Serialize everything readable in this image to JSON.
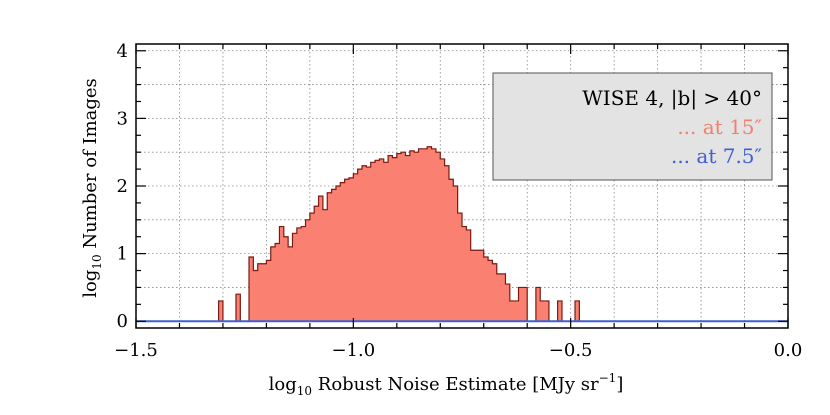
{
  "chart_data": {
    "type": "histogram",
    "xlabel": {
      "prefix": "log",
      "sub": "10",
      "main": " Robust Noise Estimate [MJy sr",
      "sup": "−1",
      "suffix": "]"
    },
    "ylabel": {
      "prefix": "log",
      "sub": "10",
      "main": " Number of Images"
    },
    "xlim": [
      -1.5,
      0.0
    ],
    "ylim": [
      -0.1,
      4.1
    ],
    "x_ticks": [
      -1.5,
      -1.0,
      -0.5,
      0.0
    ],
    "x_tick_labels": [
      "−1.5",
      "−1.0",
      "−0.5",
      "0.0"
    ],
    "y_ticks": [
      0,
      1,
      2,
      3,
      4
    ],
    "y_tick_labels": [
      "0",
      "1",
      "2",
      "3",
      "4"
    ],
    "grid": true,
    "legend": {
      "position": "top-right",
      "title": "WISE 4, |b| > 40°",
      "entries": [
        {
          "label": "... at 15″",
          "color": "#f08070"
        },
        {
          "label": "... at 7.5″",
          "color": "#4060d0"
        }
      ]
    },
    "series": [
      {
        "name": "at 15″",
        "fill_color": "#fa8072",
        "edge_color": "#7a1a10",
        "bin_width": 0.01,
        "bins": [
          [
            -1.31,
            0.3
          ],
          [
            -1.3,
            0.0
          ],
          [
            -1.28,
            0.0
          ],
          [
            -1.27,
            0.4
          ],
          [
            -1.26,
            0.0
          ],
          [
            -1.24,
            0.95
          ],
          [
            -1.23,
            0.75
          ],
          [
            -1.22,
            0.85
          ],
          [
            -1.21,
            0.85
          ],
          [
            -1.2,
            0.9
          ],
          [
            -1.19,
            1.1
          ],
          [
            -1.18,
            1.15
          ],
          [
            -1.17,
            1.4
          ],
          [
            -1.16,
            1.25
          ],
          [
            -1.15,
            1.1
          ],
          [
            -1.14,
            1.3
          ],
          [
            -1.13,
            1.38
          ],
          [
            -1.12,
            1.4
          ],
          [
            -1.11,
            1.5
          ],
          [
            -1.1,
            1.6
          ],
          [
            -1.09,
            1.7
          ],
          [
            -1.08,
            1.85
          ],
          [
            -1.07,
            1.65
          ],
          [
            -1.06,
            1.9
          ],
          [
            -1.05,
            1.95
          ],
          [
            -1.04,
            2.0
          ],
          [
            -1.03,
            2.05
          ],
          [
            -1.02,
            2.1
          ],
          [
            -1.01,
            2.12
          ],
          [
            -1.0,
            2.18
          ],
          [
            -0.99,
            2.25
          ],
          [
            -0.98,
            2.3
          ],
          [
            -0.97,
            2.28
          ],
          [
            -0.96,
            2.35
          ],
          [
            -0.95,
            2.38
          ],
          [
            -0.94,
            2.4
          ],
          [
            -0.93,
            2.35
          ],
          [
            -0.92,
            2.45
          ],
          [
            -0.91,
            2.42
          ],
          [
            -0.9,
            2.48
          ],
          [
            -0.89,
            2.5
          ],
          [
            -0.88,
            2.45
          ],
          [
            -0.87,
            2.52
          ],
          [
            -0.86,
            2.5
          ],
          [
            -0.85,
            2.55
          ],
          [
            -0.84,
            2.55
          ],
          [
            -0.83,
            2.58
          ],
          [
            -0.82,
            2.55
          ],
          [
            -0.81,
            2.5
          ],
          [
            -0.8,
            2.4
          ],
          [
            -0.79,
            2.3
          ],
          [
            -0.78,
            2.1
          ],
          [
            -0.77,
            2.0
          ],
          [
            -0.76,
            1.6
          ],
          [
            -0.75,
            1.4
          ],
          [
            -0.74,
            1.35
          ],
          [
            -0.73,
            1.05
          ],
          [
            -0.72,
            1.05
          ],
          [
            -0.71,
            1.05
          ],
          [
            -0.7,
            0.95
          ],
          [
            -0.69,
            0.9
          ],
          [
            -0.68,
            0.85
          ],
          [
            -0.67,
            0.7
          ],
          [
            -0.66,
            0.7
          ],
          [
            -0.65,
            0.55
          ],
          [
            -0.64,
            0.3
          ],
          [
            -0.63,
            0.3
          ],
          [
            -0.62,
            0.5
          ],
          [
            -0.61,
            0.5
          ],
          [
            -0.6,
            0.0
          ],
          [
            -0.58,
            0.5
          ],
          [
            -0.57,
            0.3
          ],
          [
            -0.56,
            0.3
          ],
          [
            -0.55,
            0.0
          ],
          [
            -0.53,
            0.3
          ],
          [
            -0.52,
            0.0
          ],
          [
            -0.49,
            0.3
          ],
          [
            -0.48,
            0.0
          ]
        ]
      },
      {
        "name": "at 7.5″",
        "line_color": "#4060d0",
        "y_constant": 0.0
      }
    ]
  }
}
